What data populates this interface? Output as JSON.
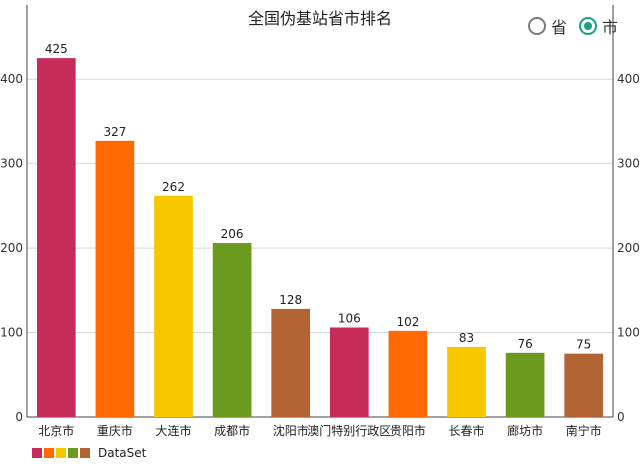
{
  "chart_data": {
    "type": "bar",
    "title": "全国伪基站省市排名",
    "categories": [
      "北京市",
      "重庆市",
      "大连市",
      "成都市",
      "沈阳市",
      "澳门特别行政区",
      "贵阳市",
      "长春市",
      "廊坊市",
      "南宁市"
    ],
    "values": [
      425,
      327,
      262,
      206,
      128,
      106,
      102,
      83,
      76,
      75
    ],
    "colors": [
      "#c62b5a",
      "#fe6a01",
      "#f7c800",
      "#6b9a1e",
      "#b36434",
      "#c62b5a",
      "#fe6a01",
      "#f7c800",
      "#6b9a1e",
      "#b36434"
    ],
    "ylim": [
      0,
      450
    ],
    "yticks": [
      0,
      100,
      200,
      300,
      400
    ],
    "grid": true,
    "legend": {
      "placement": "bottom-left",
      "label": "DataSet",
      "swatch_colors": [
        "#c62b5a",
        "#fe6a01",
        "#f7c800",
        "#6b9a1e",
        "#b36434"
      ]
    }
  },
  "toggle": {
    "options": [
      {
        "label": "省",
        "selected": false
      },
      {
        "label": "市",
        "selected": true
      }
    ]
  }
}
